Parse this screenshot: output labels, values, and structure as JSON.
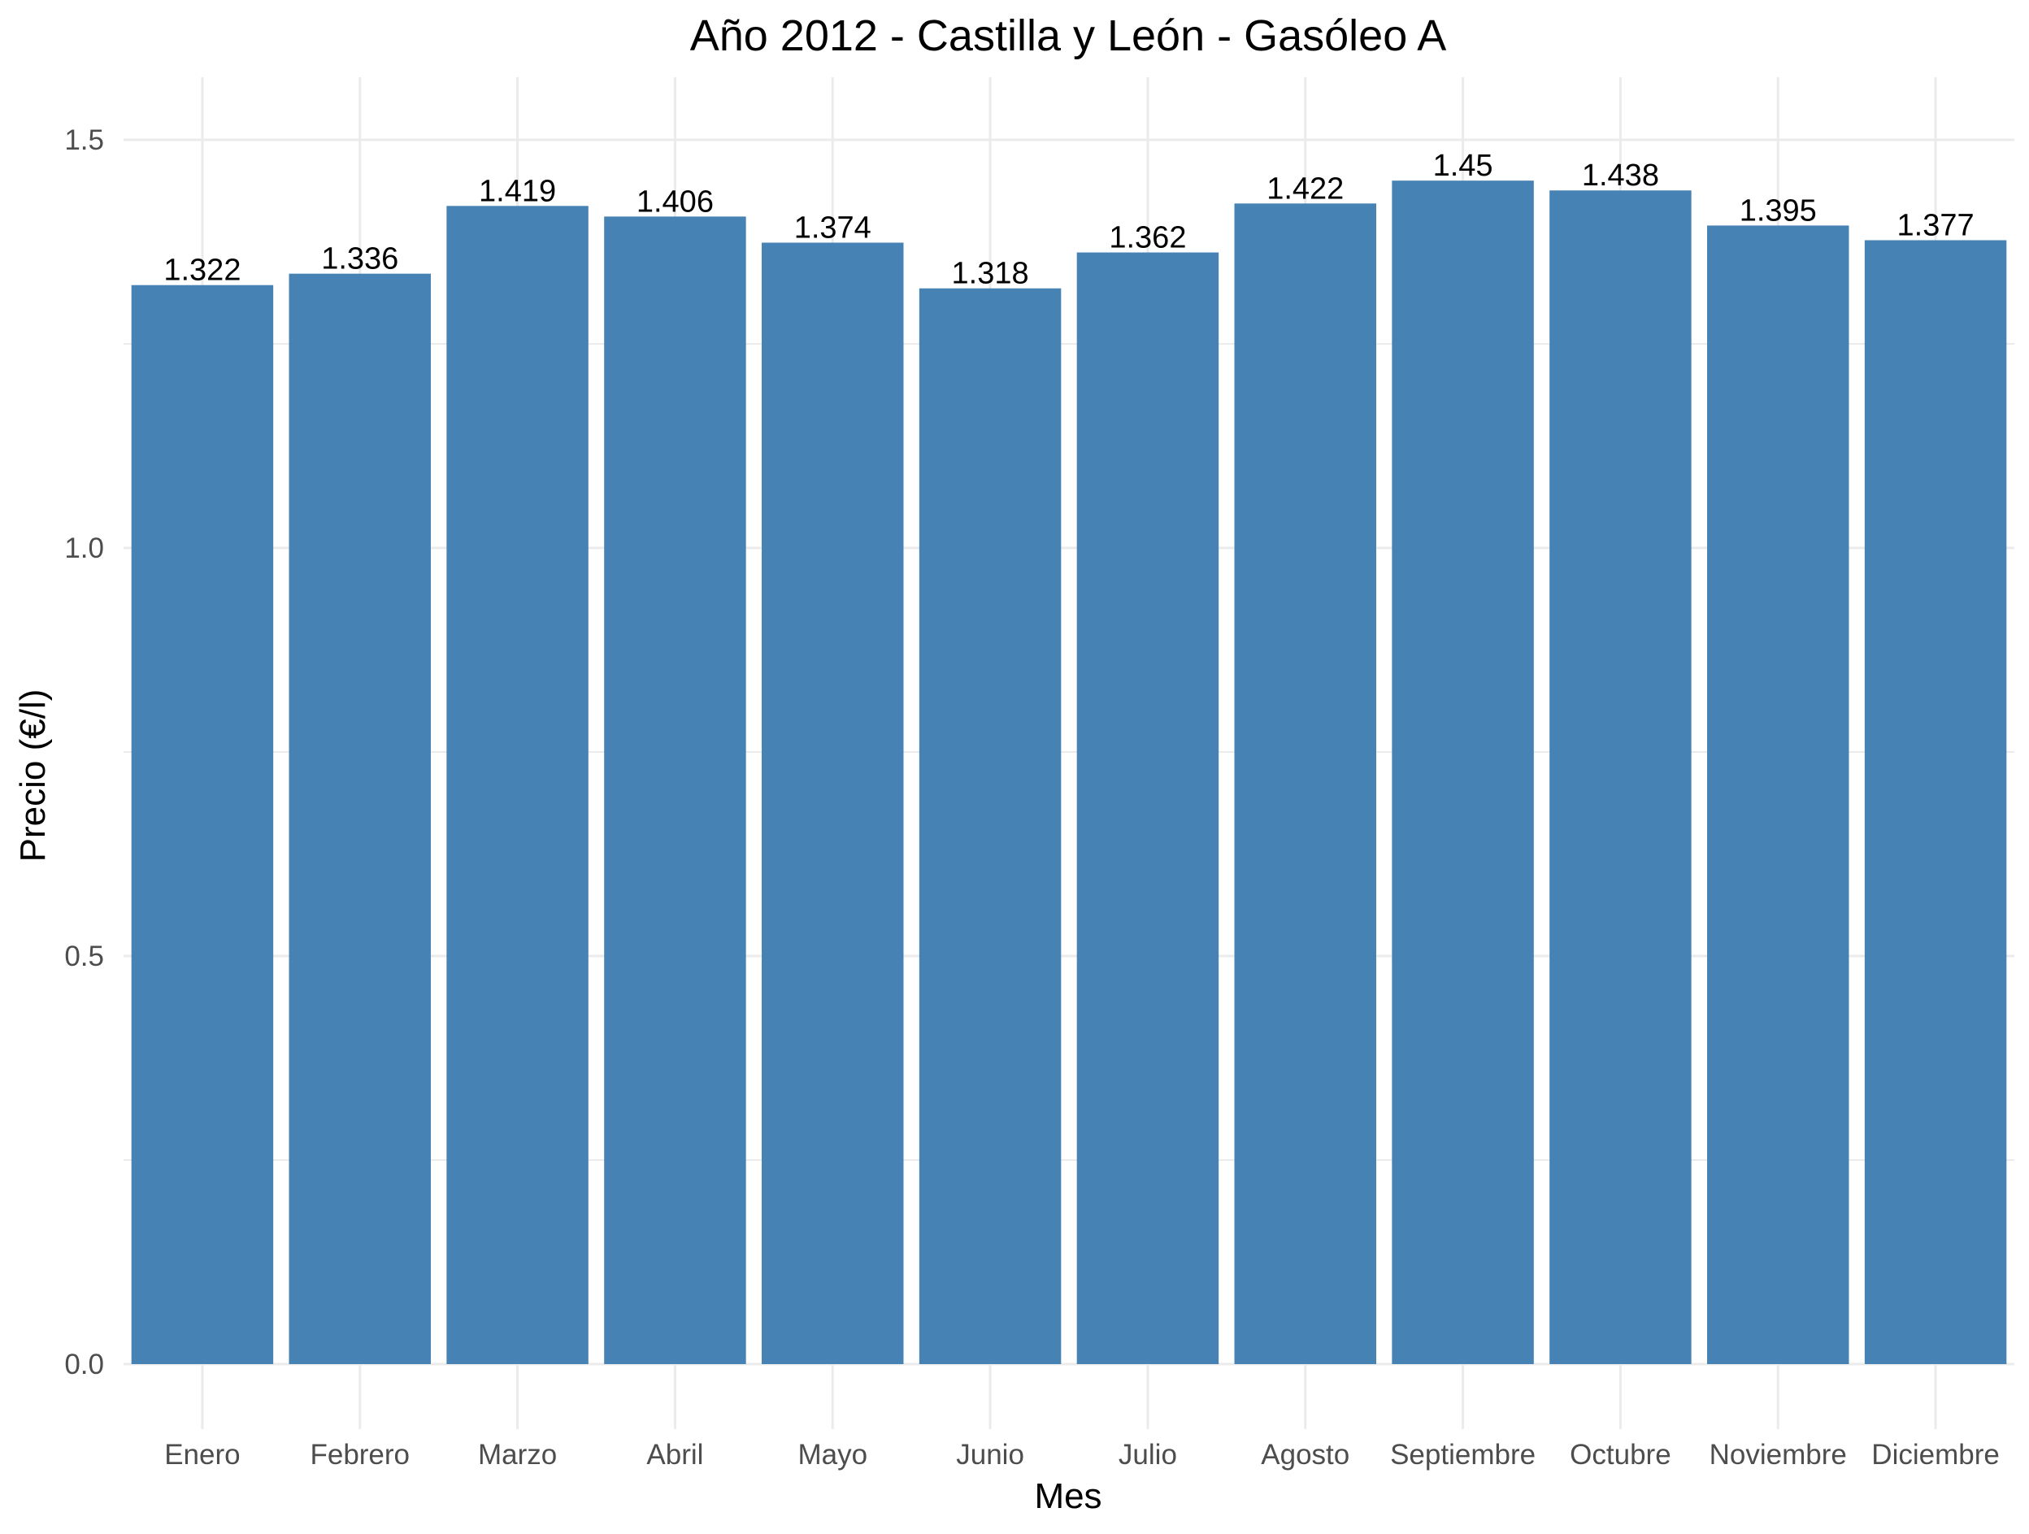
{
  "chart_data": {
    "type": "bar",
    "title": "Año 2012 - Castilla y León - Gasóleo A",
    "xlabel": "Mes",
    "ylabel": "Precio (€/l)",
    "categories": [
      "Enero",
      "Febrero",
      "Marzo",
      "Abril",
      "Mayo",
      "Junio",
      "Julio",
      "Agosto",
      "Septiembre",
      "Octubre",
      "Noviembre",
      "Diciembre"
    ],
    "values": [
      1.322,
      1.336,
      1.419,
      1.406,
      1.374,
      1.318,
      1.362,
      1.422,
      1.45,
      1.438,
      1.395,
      1.377
    ],
    "data_labels": [
      "1.322",
      "1.336",
      "1.419",
      "1.406",
      "1.374",
      "1.318",
      "1.362",
      "1.422",
      "1.45",
      "1.438",
      "1.395",
      "1.377"
    ],
    "ylim": [
      0,
      1.5
    ],
    "y_ticks": [
      0.0,
      0.5,
      1.0,
      1.5
    ],
    "y_tick_labels": [
      "0.0",
      "0.5",
      "1.0",
      "1.5"
    ],
    "grid": true,
    "legend": "none",
    "colors": {
      "bar": "#4682B4",
      "grid": "#EBEBEB",
      "background": "#FFFFFF"
    }
  }
}
